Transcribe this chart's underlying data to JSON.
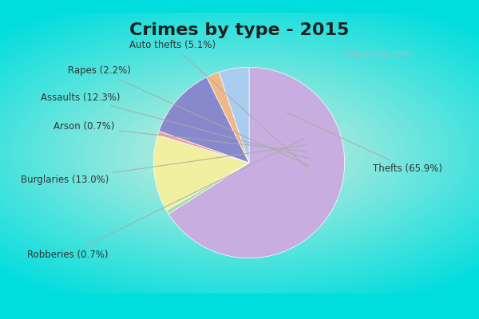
{
  "title": "Crimes by type - 2015",
  "pie_order": [
    {
      "label": "Thefts (65.9%)",
      "value": 65.9,
      "color": "#c8aee0"
    },
    {
      "label": "Robberies (0.7%)",
      "value": 0.7,
      "color": "#aaddaa"
    },
    {
      "label": "Burglaries (13.0%)",
      "value": 13.0,
      "color": "#f0f0a0"
    },
    {
      "label": "Arson (0.7%)",
      "value": 0.7,
      "color": "#f0a0a0"
    },
    {
      "label": "Assaults (12.3%)",
      "value": 12.3,
      "color": "#8888cc"
    },
    {
      "label": "Rapes (2.2%)",
      "value": 2.2,
      "color": "#f0b888"
    },
    {
      "label": "Auto thefts (5.1%)",
      "value": 5.1,
      "color": "#aaccee"
    }
  ],
  "startangle": 90,
  "bg_outer": "#00dddd",
  "title_fontsize": 16,
  "title_color": "#222222",
  "label_fontsize": 8.5,
  "label_color": "#333333",
  "watermark": "City-Data.com",
  "watermark_color": "#aabbcc"
}
